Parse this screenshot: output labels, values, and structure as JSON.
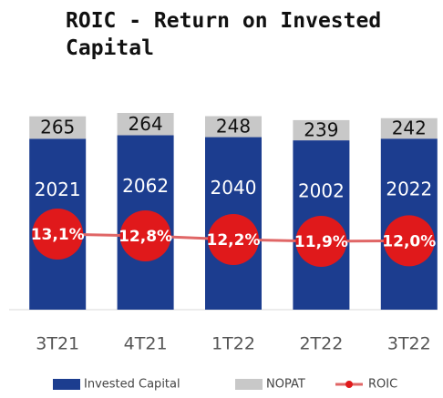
{
  "chart_data": {
    "type": "stacked_bar_line",
    "title": "ROIC - Return on Invested Capital",
    "categories": [
      "3T21",
      "4T21",
      "1T22",
      "2T22",
      "3T22"
    ],
    "series": [
      {
        "name": "Invested Capital",
        "color": "#1c3d8f",
        "values": [
          2021,
          2062,
          2040,
          2002,
          2022
        ]
      },
      {
        "name": "NOPAT",
        "color": "#c8c8c8",
        "values": [
          265,
          264,
          248,
          239,
          242
        ]
      },
      {
        "name": "ROIC",
        "color": "#e0191b",
        "values": [
          13.1,
          12.8,
          12.2,
          11.9,
          12.0
        ],
        "value_labels": [
          "13,1%",
          "12,8%",
          "12,2%",
          "11,9%",
          "12,0%"
        ]
      }
    ]
  }
}
